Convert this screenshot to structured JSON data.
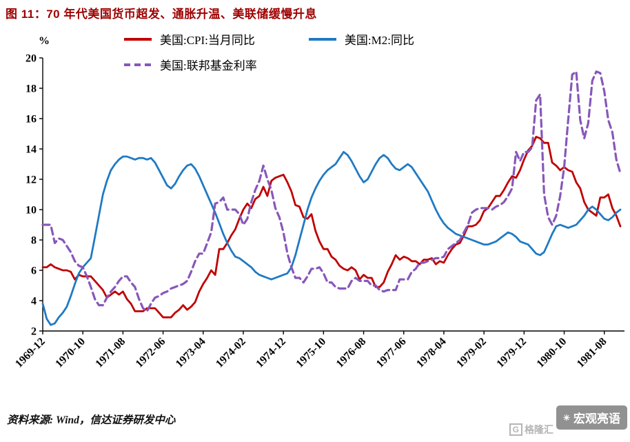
{
  "footer": {
    "source": "资料来源: Wind，信达证券研发中心"
  },
  "watermark": {
    "brand": "宏观亮语",
    "logo_text": "格隆汇"
  },
  "chart_data": {
    "type": "line",
    "title": "图 11：70 年代美国货币超发、通胀升温、美联储缓慢升息",
    "ylabel": "%",
    "ylim": [
      2,
      20
    ],
    "yticks": [
      2,
      4,
      6,
      8,
      10,
      12,
      14,
      16,
      18,
      20
    ],
    "grid": false,
    "legend_position": "top",
    "x_start": "1969-12",
    "x_frequency": "monthly",
    "x_tick_every": 10,
    "x_tick_labels": [
      "1969-12",
      "1970-10",
      "1971-08",
      "1972-06",
      "1973-04",
      "1974-02",
      "1974-12",
      "1975-10",
      "1976-08",
      "1977-06",
      "1978-04",
      "1979-02",
      "1979-12",
      "1980-10",
      "1981-08"
    ],
    "series": [
      {
        "name": "美国:CPI:当月同比",
        "color": "#C00000",
        "width": 2.8,
        "dash": null,
        "values": [
          6.2,
          6.2,
          6.4,
          6.2,
          6.1,
          6.0,
          6.0,
          5.9,
          5.4,
          5.7,
          5.6,
          5.6,
          5.6,
          5.3,
          5.0,
          4.7,
          4.2,
          4.4,
          4.6,
          4.4,
          4.6,
          4.1,
          3.8,
          3.3,
          3.3,
          3.3,
          3.5,
          3.5,
          3.5,
          3.2,
          2.9,
          2.9,
          2.9,
          3.2,
          3.4,
          3.7,
          3.4,
          3.6,
          3.9,
          4.6,
          5.1,
          5.5,
          6.0,
          5.7,
          7.4,
          7.4,
          7.8,
          8.3,
          8.7,
          9.4,
          10.0,
          10.4,
          10.1,
          10.7,
          10.9,
          11.5,
          10.9,
          11.9,
          12.1,
          12.2,
          12.3,
          11.8,
          11.2,
          10.3,
          10.2,
          9.5,
          9.4,
          9.7,
          8.6,
          7.9,
          7.4,
          7.4,
          6.9,
          6.7,
          6.3,
          6.1,
          6.0,
          6.2,
          6.0,
          5.4,
          5.7,
          5.5,
          5.5,
          4.9,
          4.9,
          5.2,
          5.9,
          6.4,
          7.0,
          6.7,
          6.9,
          6.8,
          6.6,
          6.6,
          6.4,
          6.7,
          6.7,
          6.8,
          6.4,
          6.6,
          6.5,
          7.0,
          7.4,
          7.7,
          7.8,
          8.3,
          8.9,
          8.9,
          9.0,
          9.3,
          9.9,
          10.1,
          10.5,
          10.9,
          10.9,
          11.3,
          11.8,
          12.2,
          12.1,
          12.6,
          13.3,
          13.9,
          14.2,
          14.8,
          14.7,
          14.4,
          14.4,
          13.1,
          12.9,
          12.6,
          12.8,
          12.6,
          12.5,
          11.8,
          11.4,
          10.5,
          10.0,
          9.8,
          9.6,
          10.8,
          10.8,
          11.0,
          10.1,
          9.6,
          8.9
        ]
      },
      {
        "name": "美国:M2:同比",
        "color": "#1F7AC4",
        "width": 2.8,
        "dash": null,
        "values": [
          3.8,
          2.8,
          2.4,
          2.5,
          2.9,
          3.2,
          3.6,
          4.3,
          5.1,
          5.8,
          6.2,
          6.5,
          6.8,
          8.2,
          9.6,
          11.0,
          11.9,
          12.6,
          13.0,
          13.3,
          13.5,
          13.5,
          13.4,
          13.3,
          13.4,
          13.4,
          13.3,
          13.4,
          13.1,
          12.6,
          12.1,
          11.6,
          11.4,
          11.7,
          12.2,
          12.6,
          12.9,
          13.0,
          12.7,
          12.2,
          11.6,
          11.0,
          10.4,
          9.8,
          9.1,
          8.4,
          7.8,
          7.3,
          6.9,
          6.8,
          6.6,
          6.4,
          6.2,
          5.9,
          5.7,
          5.6,
          5.5,
          5.4,
          5.5,
          5.6,
          5.7,
          5.8,
          6.2,
          7.0,
          8.0,
          9.0,
          10.0,
          10.8,
          11.4,
          11.9,
          12.3,
          12.6,
          12.8,
          13.0,
          13.4,
          13.8,
          13.6,
          13.2,
          12.7,
          12.2,
          11.8,
          12.0,
          12.5,
          13.0,
          13.4,
          13.6,
          13.4,
          13.0,
          12.7,
          12.6,
          12.8,
          13.0,
          12.8,
          12.4,
          12.0,
          11.6,
          11.2,
          10.6,
          10.0,
          9.5,
          9.1,
          8.8,
          8.6,
          8.4,
          8.3,
          8.2,
          8.1,
          8.0,
          7.9,
          7.8,
          7.7,
          7.7,
          7.8,
          7.9,
          8.1,
          8.3,
          8.5,
          8.4,
          8.2,
          7.9,
          7.8,
          7.7,
          7.4,
          7.1,
          7.0,
          7.2,
          7.8,
          8.4,
          8.9,
          9.0,
          8.9,
          8.8,
          8.9,
          9.0,
          9.3,
          9.6,
          10.0,
          10.2,
          10.0,
          9.7,
          9.4,
          9.3,
          9.5,
          9.8,
          10.0
        ]
      },
      {
        "name": "美国:联邦基金利率",
        "color": "#8757BA",
        "width": 3.2,
        "dash": "10 6",
        "values": [
          9.0,
          9.0,
          9.0,
          7.8,
          8.1,
          8.0,
          7.6,
          7.2,
          6.6,
          6.3,
          6.2,
          5.6,
          4.9,
          4.1,
          3.7,
          3.7,
          4.2,
          4.6,
          4.9,
          5.3,
          5.6,
          5.6,
          5.2,
          4.9,
          4.1,
          3.5,
          3.3,
          3.8,
          4.2,
          4.3,
          4.5,
          4.6,
          4.8,
          4.9,
          5.0,
          5.1,
          5.3,
          5.9,
          6.6,
          7.1,
          7.1,
          7.8,
          8.5,
          10.4,
          10.5,
          10.8,
          10.0,
          10.0,
          10.0,
          9.7,
          9.0,
          9.4,
          10.5,
          11.3,
          11.9,
          12.9,
          12.0,
          11.3,
          10.1,
          9.5,
          8.5,
          7.1,
          6.2,
          5.5,
          5.5,
          5.2,
          5.6,
          6.1,
          6.1,
          6.2,
          5.8,
          5.2,
          5.2,
          4.9,
          4.8,
          4.8,
          4.8,
          5.3,
          5.5,
          5.3,
          5.3,
          5.3,
          5.0,
          5.0,
          4.7,
          4.6,
          4.7,
          4.7,
          4.7,
          5.4,
          5.4,
          5.4,
          5.9,
          6.1,
          6.5,
          6.5,
          6.6,
          6.7,
          6.8,
          6.8,
          6.9,
          7.4,
          7.6,
          7.8,
          8.0,
          8.5,
          9.0,
          9.8,
          10.0,
          10.1,
          10.1,
          10.1,
          10.0,
          10.2,
          10.3,
          10.5,
          10.9,
          11.4,
          13.8,
          13.2,
          13.8,
          13.8,
          14.1,
          17.2,
          17.6,
          11.0,
          9.5,
          9.0,
          9.6,
          10.9,
          12.8,
          15.9,
          18.9,
          19.1,
          15.9,
          14.7,
          15.7,
          18.5,
          19.1,
          19.0,
          17.8,
          15.9,
          15.1,
          13.3,
          12.4
        ]
      }
    ]
  }
}
